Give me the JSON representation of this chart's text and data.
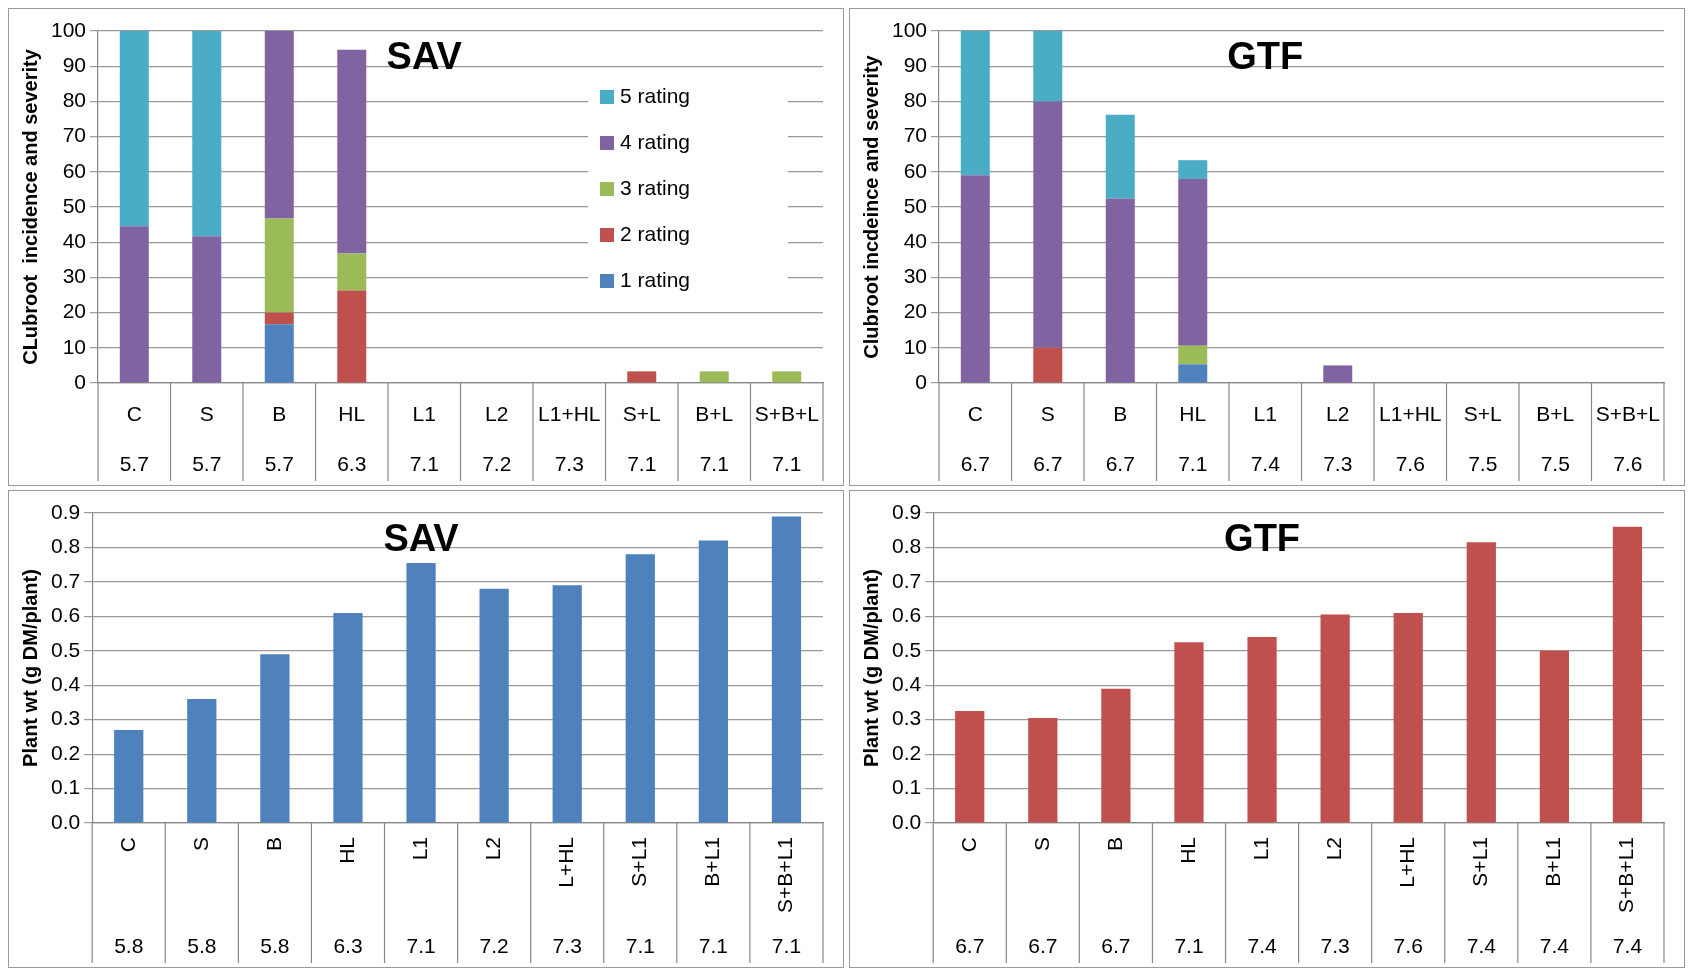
{
  "chart_data": [
    {
      "type": "bar",
      "title": "SAV",
      "ylabel": "CLubroot  incidence and severity",
      "stacked": true,
      "categories": [
        "C",
        "S",
        "B",
        "HL",
        "L1",
        "L2",
        "L1+HL",
        "S+L",
        "B+L",
        "S+B+L"
      ],
      "annotations": [
        "5.7",
        "5.7",
        "5.7",
        "6.3",
        "7.1",
        "7.2",
        "7.3",
        "7.1",
        "7.1",
        "7.1"
      ],
      "ylim": [
        0,
        100
      ],
      "yticks": [
        0,
        10,
        20,
        30,
        40,
        50,
        60,
        70,
        80,
        90,
        100
      ],
      "grid": "y",
      "legend": "right",
      "series": [
        {
          "name": "1 rating",
          "color": "#4f81bd",
          "values": [
            null,
            null,
            16.7,
            null,
            null,
            null,
            null,
            null,
            null,
            null
          ]
        },
        {
          "name": "2 rating",
          "color": "#c0504d",
          "values": [
            null,
            null,
            3.3,
            26.3,
            null,
            null,
            null,
            3.3,
            null,
            null
          ]
        },
        {
          "name": "3 rating",
          "color": "#9bbb59",
          "values": [
            null,
            null,
            26.7,
            10.5,
            null,
            null,
            null,
            null,
            3.3,
            3.3
          ]
        },
        {
          "name": "4 rating",
          "color": "#8064a2",
          "values": [
            44.5,
            41.7,
            53.3,
            57.9,
            null,
            null,
            null,
            null,
            null,
            null
          ]
        },
        {
          "name": "5 rating",
          "color": "#4bacc6",
          "values": [
            55.5,
            58.3,
            null,
            null,
            null,
            null,
            null,
            null,
            null,
            null
          ]
        }
      ]
    },
    {
      "type": "bar",
      "title": "GTF",
      "ylabel": "Clubroot incdeince and severity",
      "stacked": true,
      "categories": [
        "C",
        "S",
        "B",
        "HL",
        "L1",
        "L2",
        "L1+HL",
        "S+L",
        "B+L",
        "S+B+L"
      ],
      "annotations": [
        "6.7",
        "6.7",
        "6.7",
        "7.1",
        "7.4",
        "7.3",
        "7.6",
        "7.5",
        "7.5",
        "7.6"
      ],
      "ylim": [
        0,
        100
      ],
      "yticks": [
        0,
        10,
        20,
        30,
        40,
        50,
        60,
        70,
        80,
        90,
        100
      ],
      "grid": "y",
      "series": [
        {
          "color": "#4f81bd",
          "values": [
            null,
            null,
            null,
            5.3,
            null,
            null,
            null,
            null,
            null,
            null
          ]
        },
        {
          "color": "#c0504d",
          "values": [
            null,
            10,
            null,
            null,
            null,
            null,
            null,
            null,
            null,
            null
          ]
        },
        {
          "color": "#9bbb59",
          "values": [
            null,
            null,
            null,
            5.3,
            null,
            null,
            null,
            null,
            null,
            null
          ]
        },
        {
          "color": "#8064a2",
          "values": [
            59,
            70,
            52.4,
            47.4,
            null,
            5,
            null,
            null,
            null,
            null
          ]
        },
        {
          "color": "#4bacc6",
          "values": [
            41,
            20,
            23.8,
            5.3,
            null,
            null,
            null,
            null,
            null,
            null
          ]
        }
      ]
    },
    {
      "type": "bar",
      "title": "SAV",
      "ylabel": "Plant wt (g DM/plant)",
      "categories": [
        "C",
        "S",
        "B",
        "HL",
        "L1",
        "L2",
        "L+HL",
        "S+L1",
        "B+L1",
        "S+B+L1"
      ],
      "annotations": [
        "5.8",
        "5.8",
        "5.8",
        "6.3",
        "7.1",
        "7.2",
        "7.3",
        "7.1",
        "7.1",
        "7.1"
      ],
      "ylim": [
        0,
        0.9
      ],
      "yticks": [
        {
          "value": 0,
          "label": "0.0"
        },
        0.1,
        0.2,
        0.3,
        0.4,
        0.5,
        0.6,
        0.7,
        0.8,
        0.9
      ],
      "grid": "y",
      "series": [
        {
          "color": "#4f81bd",
          "values": [
            0.27,
            0.36,
            0.49,
            0.61,
            0.755,
            0.68,
            0.69,
            0.78,
            0.82,
            0.89
          ]
        }
      ]
    },
    {
      "type": "bar",
      "title": "GTF",
      "ylabel": "Plant wt (g DM/plant)",
      "categories": [
        "C",
        "S",
        "B",
        "HL",
        "L1",
        "L2",
        "L+HL",
        "S+L1",
        "B+L1",
        "S+B+L1"
      ],
      "annotations": [
        "6.7",
        "6.7",
        "6.7",
        "7.1",
        "7.4",
        "7.3",
        "7.6",
        "7.4",
        "7.4",
        "7.4"
      ],
      "ylim": [
        0,
        0.9
      ],
      "yticks": [
        {
          "value": 0,
          "label": "0.0"
        },
        0.1,
        0.2,
        0.3,
        0.4,
        0.5,
        0.6,
        0.7,
        0.8,
        0.9
      ],
      "grid": "y",
      "series": [
        {
          "color": "#c0504d",
          "values": [
            0.325,
            0.305,
            0.39,
            0.525,
            0.54,
            0.605,
            0.61,
            0.815,
            0.5,
            0.86
          ]
        }
      ]
    }
  ]
}
